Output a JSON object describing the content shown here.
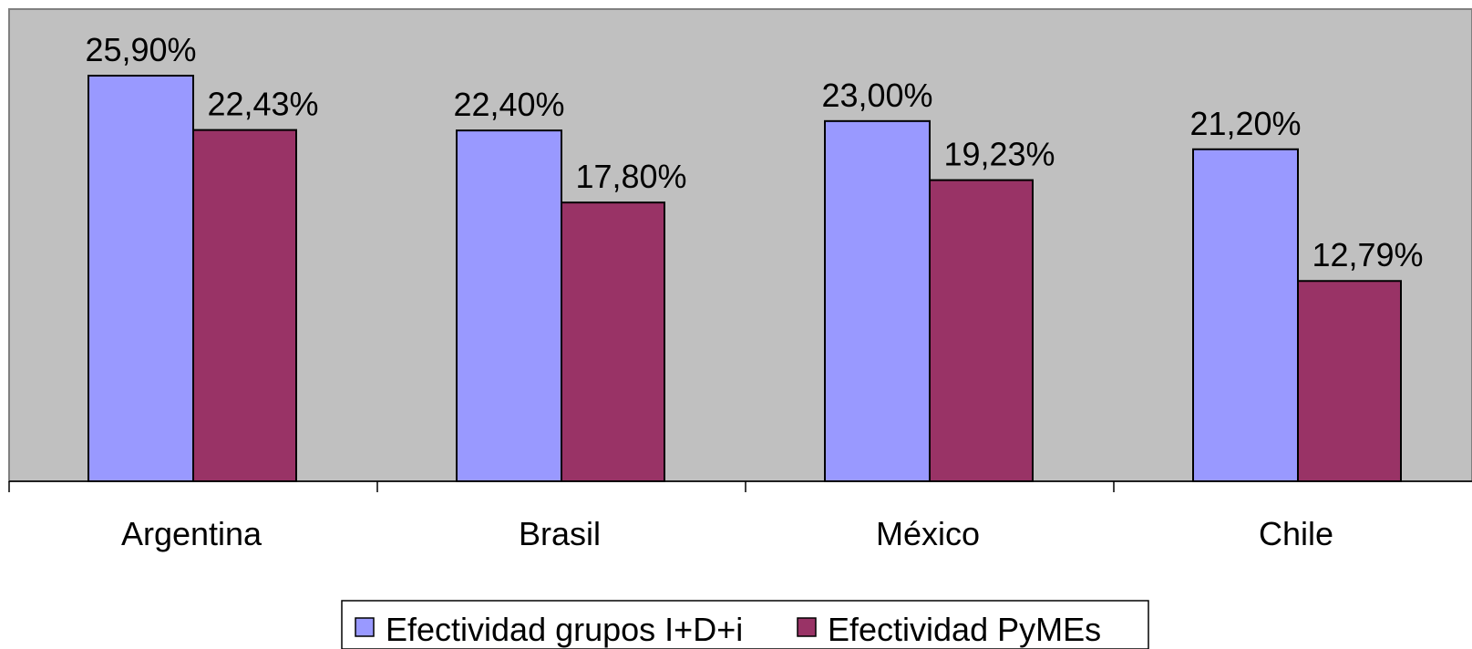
{
  "chart_data": {
    "type": "bar",
    "title": "",
    "xlabel": "",
    "ylabel": "",
    "ylim": [
      0,
      0.3
    ],
    "grid": false,
    "legend_position": "bottom-center",
    "categories": [
      "Argentina",
      "Brasil",
      "México",
      "Chile"
    ],
    "series": [
      {
        "name": "Efectividad grupos I+D+i",
        "color": "#9999ff",
        "values": [
          0.259,
          0.224,
          0.23,
          0.212
        ],
        "labels": [
          "25,90%",
          "22,40%",
          "23,00%",
          "21,20%"
        ]
      },
      {
        "name": "Efectividad PyMEs",
        "color": "#993366",
        "values": [
          0.2243,
          0.178,
          0.1923,
          0.1279
        ],
        "labels": [
          "22,43%",
          "17,80%",
          "19,23%",
          "12,79%"
        ]
      }
    ],
    "plot_background": "#c0c0c0"
  }
}
